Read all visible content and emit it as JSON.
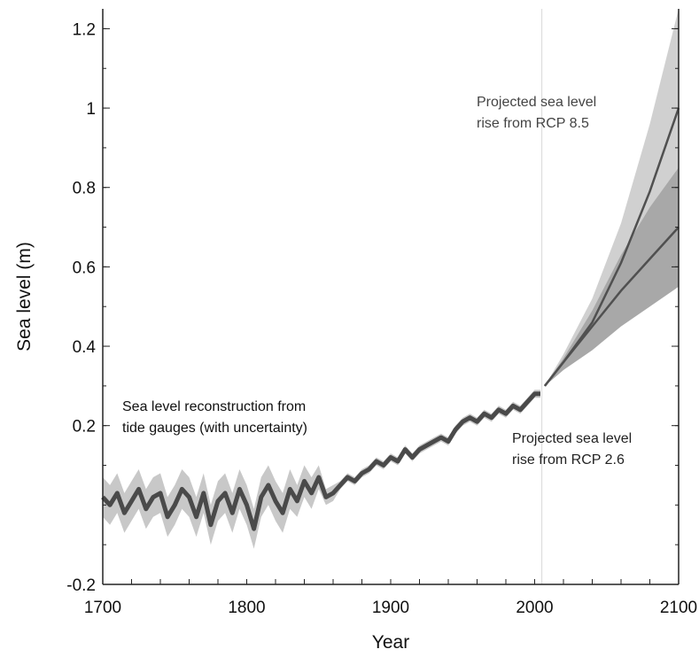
{
  "chart_data": {
    "type": "line",
    "xlabel": "Year",
    "ylabel": "Sea  level (m)",
    "xlim": [
      1700,
      2100
    ],
    "ylim": [
      -0.2,
      1.25
    ],
    "x_ticks": [
      1700,
      1800,
      1900,
      2000,
      2100
    ],
    "y_ticks": [
      {
        "value": -0.2,
        "label": "-0.2"
      },
      {
        "value": 0.2,
        "label": "0.2"
      },
      {
        "value": 0.4,
        "label": "0.4"
      },
      {
        "value": 0.6,
        "label": "0.6"
      },
      {
        "value": 0.8,
        "label": "0.8"
      },
      {
        "value": 1.0,
        "label": "1"
      },
      {
        "value": 1.2,
        "label": "1.2"
      }
    ],
    "vertical_marker_year": 2005,
    "grid": false,
    "colors": {
      "reconstruction_line": "#4a4a4a",
      "reconstruction_band": "#c8c8c8",
      "rcp85_band": "#d0d0d0",
      "rcp26_band": "#a8a8a8",
      "projection_line": "#505050",
      "annotation_text": "#444444"
    },
    "series": [
      {
        "key": "reconstruction",
        "x": [
          1700,
          1705,
          1710,
          1715,
          1720,
          1725,
          1730,
          1735,
          1740,
          1745,
          1750,
          1755,
          1760,
          1765,
          1770,
          1775,
          1780,
          1785,
          1790,
          1795,
          1800,
          1805,
          1810,
          1815,
          1820,
          1825,
          1830,
          1835,
          1840,
          1845,
          1850,
          1855,
          1860,
          1865,
          1870,
          1875,
          1880,
          1885,
          1890,
          1895,
          1900,
          1905,
          1910,
          1915,
          1920,
          1925,
          1930,
          1935,
          1940,
          1945,
          1950,
          1955,
          1960,
          1965,
          1970,
          1975,
          1980,
          1985,
          1990,
          1995,
          2000,
          2004
        ],
        "y": [
          0.02,
          0.0,
          0.03,
          -0.02,
          0.01,
          0.04,
          -0.01,
          0.02,
          0.03,
          -0.03,
          0.0,
          0.04,
          0.02,
          -0.03,
          0.03,
          -0.05,
          0.01,
          0.03,
          -0.02,
          0.04,
          0.0,
          -0.06,
          0.02,
          0.05,
          0.01,
          -0.02,
          0.04,
          0.01,
          0.06,
          0.03,
          0.07,
          0.02,
          0.03,
          0.05,
          0.07,
          0.06,
          0.08,
          0.09,
          0.11,
          0.1,
          0.12,
          0.11,
          0.14,
          0.12,
          0.14,
          0.15,
          0.16,
          0.17,
          0.16,
          0.19,
          0.21,
          0.22,
          0.21,
          0.23,
          0.22,
          0.24,
          0.23,
          0.25,
          0.24,
          0.26,
          0.28,
          0.28
        ],
        "uncertainty": [
          0.05,
          0.05,
          0.05,
          0.05,
          0.05,
          0.05,
          0.05,
          0.05,
          0.05,
          0.05,
          0.05,
          0.05,
          0.05,
          0.05,
          0.05,
          0.05,
          0.05,
          0.05,
          0.05,
          0.05,
          0.05,
          0.05,
          0.05,
          0.05,
          0.05,
          0.05,
          0.05,
          0.04,
          0.04,
          0.04,
          0.03,
          0.02,
          0.02,
          0.01,
          0.01,
          0.01,
          0.01,
          0.01,
          0.01,
          0.01,
          0.01,
          0.01,
          0.01,
          0.01,
          0.01,
          0.01,
          0.01,
          0.01,
          0.01,
          0.01,
          0.01,
          0.01,
          0.01,
          0.01,
          0.01,
          0.01,
          0.01,
          0.01,
          0.01,
          0.01,
          0.01,
          0.01
        ]
      },
      {
        "key": "rcp85",
        "x": [
          2007,
          2020,
          2040,
          2060,
          2080,
          2100
        ],
        "y": [
          0.3,
          0.36,
          0.46,
          0.61,
          0.79,
          1.0
        ],
        "lower": [
          0.3,
          0.34,
          0.41,
          0.53,
          0.68,
          0.83
        ],
        "upper": [
          0.3,
          0.38,
          0.52,
          0.71,
          0.96,
          1.25
        ]
      },
      {
        "key": "rcp26",
        "x": [
          2007,
          2020,
          2040,
          2060,
          2080,
          2100
        ],
        "y": [
          0.3,
          0.36,
          0.45,
          0.54,
          0.62,
          0.7
        ],
        "lower": [
          0.3,
          0.34,
          0.39,
          0.45,
          0.5,
          0.55
        ],
        "upper": [
          0.3,
          0.37,
          0.49,
          0.63,
          0.75,
          0.85
        ]
      }
    ],
    "annotations": [
      {
        "key": "reconstruction",
        "lines": [
          "Sea level reconstruction from",
          "tide gauges (with uncertainty)"
        ]
      },
      {
        "key": "rcp85",
        "lines": [
          "Projected sea level",
          "rise from RCP 8.5"
        ]
      },
      {
        "key": "rcp26",
        "lines": [
          "Projected sea level",
          "rise from RCP 2.6"
        ]
      }
    ]
  }
}
